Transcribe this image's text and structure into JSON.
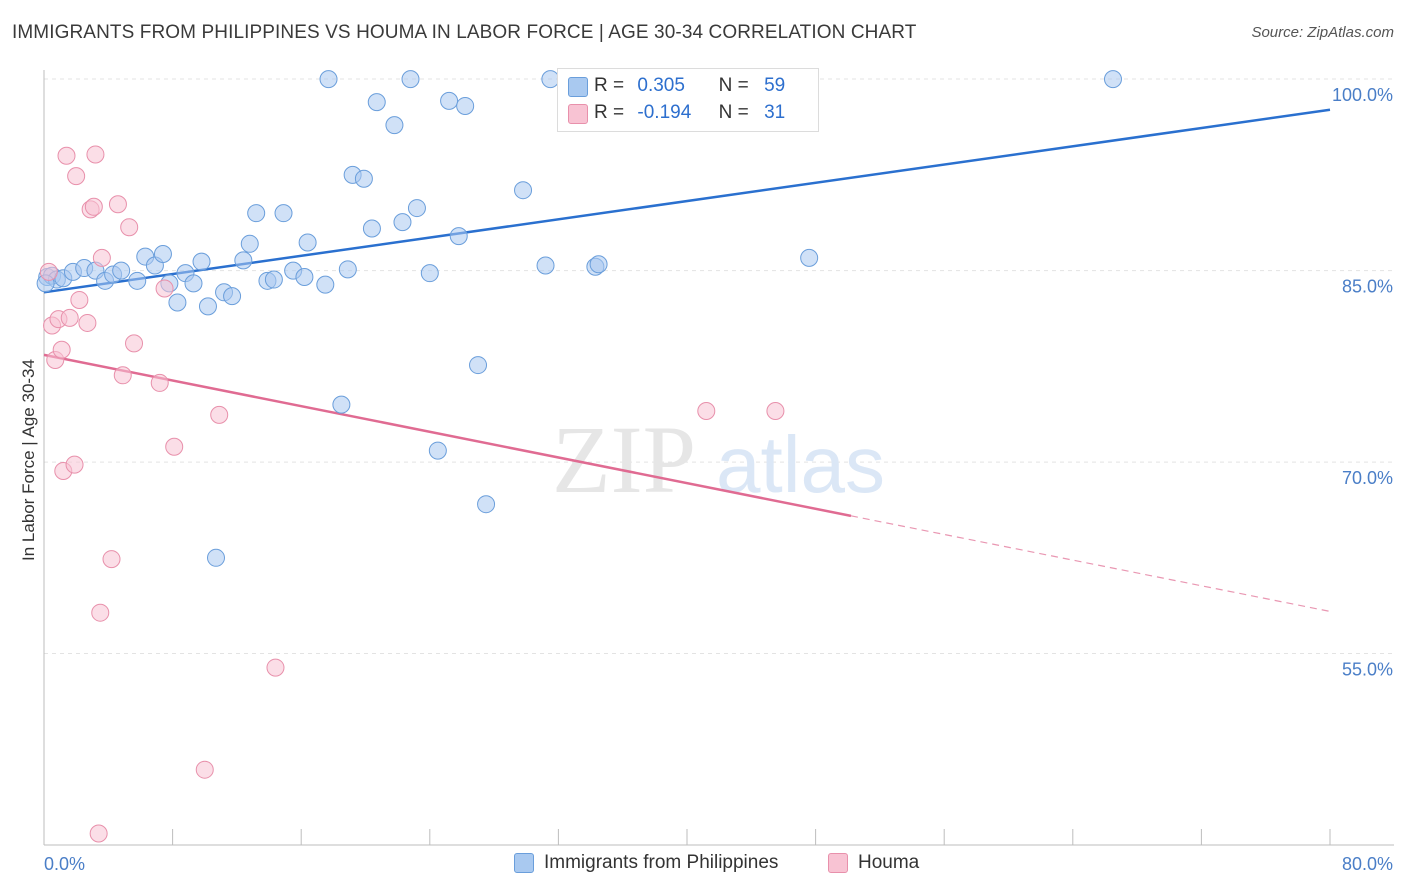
{
  "title": "IMMIGRANTS FROM PHILIPPINES VS HOUMA IN LABOR FORCE | AGE 30-34 CORRELATION CHART",
  "source": "Source: ZipAtlas.com",
  "watermark": {
    "zip": "ZIP",
    "atlas": "atlas"
  },
  "stats": {
    "r_label": "R =",
    "n_label": "N =",
    "rows": [
      {
        "r": "0.305",
        "n": "59",
        "color": "#a9c9f0",
        "border": "#6a9edb"
      },
      {
        "r": "-0.194",
        "n": "31",
        "color": "#f8c3d3",
        "border": "#e890ab"
      }
    ]
  },
  "chart_data": {
    "type": "scatter",
    "title": "IMMIGRANTS FROM PHILIPPINES VS HOUMA IN LABOR FORCE | AGE 30-34 CORRELATION CHART",
    "xlabel": "",
    "ylabel": "In Labor Force | Age 30-34",
    "xlim": [
      0,
      80
    ],
    "ylim": [
      40,
      101.5
    ],
    "x_tick_labels": [
      "0.0%",
      "80.0%"
    ],
    "y_ticks": [
      55,
      70,
      85,
      100
    ],
    "y_tick_labels": [
      "55.0%",
      "70.0%",
      "85.0%",
      "100.0%"
    ],
    "grid": true,
    "legend_position": "bottom",
    "series": [
      {
        "name": "Immigrants from Philippines",
        "color": "#a9c9f0",
        "edge": "#6a9edb",
        "trend_color": "#2a70cf",
        "trend": {
          "x": [
            0,
            80
          ],
          "y": [
            83.3,
            97.6
          ],
          "dashed_from": null
        },
        "points": [
          [
            0.2,
            84.5
          ],
          [
            0.5,
            84.6
          ],
          [
            0.8,
            84.3
          ],
          [
            1.2,
            84.4
          ],
          [
            1.8,
            84.9
          ],
          [
            2.5,
            85.2
          ],
          [
            3.2,
            85.0
          ],
          [
            3.8,
            84.2
          ],
          [
            4.3,
            84.7
          ],
          [
            4.8,
            85.0
          ],
          [
            5.8,
            84.2
          ],
          [
            6.3,
            86.1
          ],
          [
            6.9,
            85.4
          ],
          [
            7.4,
            86.3
          ],
          [
            7.8,
            84.0
          ],
          [
            8.3,
            82.5
          ],
          [
            8.8,
            84.8
          ],
          [
            9.3,
            84.0
          ],
          [
            9.8,
            85.7
          ],
          [
            10.2,
            82.2
          ],
          [
            11.2,
            83.3
          ],
          [
            11.7,
            83.0
          ],
          [
            12.4,
            85.8
          ],
          [
            12.8,
            87.1
          ],
          [
            13.2,
            89.5
          ],
          [
            13.9,
            84.2
          ],
          [
            14.3,
            84.3
          ],
          [
            14.9,
            89.5
          ],
          [
            15.5,
            85.0
          ],
          [
            16.2,
            84.5
          ],
          [
            16.4,
            87.2
          ],
          [
            17.5,
            83.9
          ],
          [
            17.7,
            100.0
          ],
          [
            18.5,
            74.5
          ],
          [
            18.9,
            85.1
          ],
          [
            19.2,
            92.5
          ],
          [
            19.9,
            92.2
          ],
          [
            20.4,
            88.3
          ],
          [
            20.7,
            98.2
          ],
          [
            21.8,
            96.4
          ],
          [
            22.3,
            88.8
          ],
          [
            22.8,
            100.0
          ],
          [
            23.2,
            89.9
          ],
          [
            24.0,
            84.8
          ],
          [
            24.5,
            70.9
          ],
          [
            25.2,
            98.3
          ],
          [
            25.8,
            87.7
          ],
          [
            26.2,
            97.9
          ],
          [
            27.0,
            77.6
          ],
          [
            27.5,
            66.7
          ],
          [
            29.8,
            91.3
          ],
          [
            31.2,
            85.4
          ],
          [
            31.5,
            100.0
          ],
          [
            34.3,
            85.3
          ],
          [
            34.5,
            85.5
          ],
          [
            10.7,
            62.5
          ],
          [
            47.6,
            86.0
          ],
          [
            66.5,
            100.0
          ],
          [
            0.1,
            84.0
          ]
        ]
      },
      {
        "name": "Houma",
        "color": "#f8c3d3",
        "edge": "#e890ab",
        "trend_color": "#e06b92",
        "trend": {
          "x": [
            0,
            80
          ],
          "y": [
            78.4,
            58.3
          ],
          "dashed_from": 50.2
        },
        "points": [
          [
            0.3,
            84.9
          ],
          [
            0.5,
            80.7
          ],
          [
            0.7,
            78.0
          ],
          [
            0.9,
            81.2
          ],
          [
            1.1,
            78.8
          ],
          [
            1.2,
            69.3
          ],
          [
            1.4,
            94.0
          ],
          [
            1.6,
            81.3
          ],
          [
            1.9,
            69.8
          ],
          [
            2.0,
            92.4
          ],
          [
            2.2,
            82.7
          ],
          [
            2.7,
            80.9
          ],
          [
            2.9,
            89.8
          ],
          [
            3.1,
            90.0
          ],
          [
            3.2,
            94.1
          ],
          [
            3.5,
            58.2
          ],
          [
            3.6,
            86.0
          ],
          [
            4.2,
            62.4
          ],
          [
            4.6,
            90.2
          ],
          [
            4.9,
            76.8
          ],
          [
            5.3,
            88.4
          ],
          [
            5.6,
            79.3
          ],
          [
            7.2,
            76.2
          ],
          [
            7.5,
            83.6
          ],
          [
            8.1,
            71.2
          ],
          [
            10.0,
            45.9
          ],
          [
            10.9,
            73.7
          ],
          [
            14.4,
            53.9
          ],
          [
            41.2,
            74.0
          ],
          [
            45.5,
            74.0
          ],
          [
            3.4,
            40.9
          ]
        ]
      }
    ]
  }
}
